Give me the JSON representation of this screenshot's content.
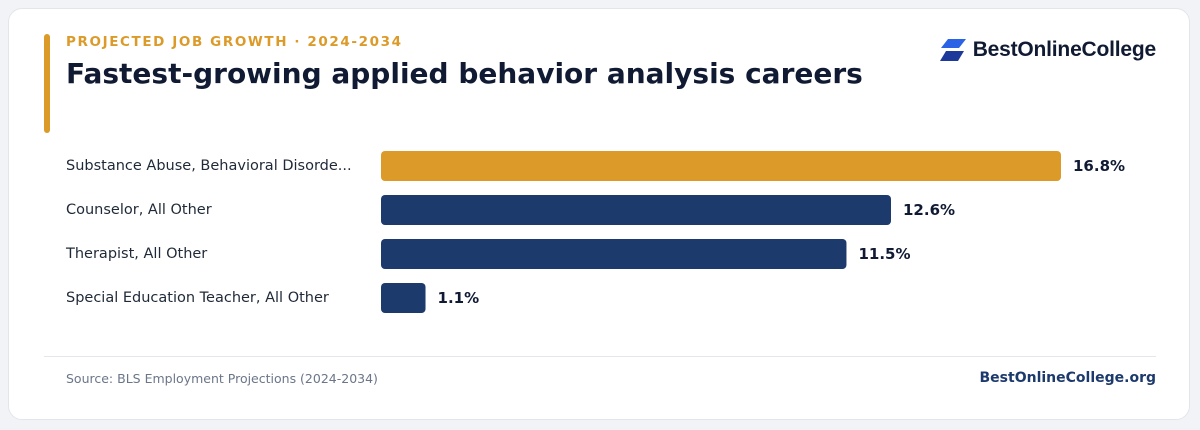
{
  "header": {
    "eyebrow": "PROJECTED JOB GROWTH · 2024-2034",
    "title": "Fastest-growing applied behavior analysis careers"
  },
  "brand": {
    "name": "BestOnlineCollege",
    "icon": "stacked-chevrons-logo-icon"
  },
  "footer": {
    "source": "Source: BLS Employment Projections (2024-2034)",
    "site": "BestOnlineCollege.org"
  },
  "colors": {
    "highlight": "#dc9a29",
    "bar": "#1d3a6d",
    "brand_blue": "#2a63e6"
  },
  "chart_data": {
    "type": "bar",
    "orientation": "horizontal",
    "title": "Fastest-growing applied behavior analysis careers",
    "categories": [
      "Substance Abuse, Behavioral Disorde...",
      "Counselor, All Other",
      "Therapist, All Other",
      "Special Education Teacher, All Other"
    ],
    "values": [
      16.8,
      12.6,
      11.5,
      1.1
    ],
    "value_labels": [
      "16.8%",
      "12.6%",
      "11.5%",
      "1.1%"
    ],
    "unit": "%",
    "highlighted_index": 0,
    "xlim": [
      0,
      16.8
    ],
    "grid": false,
    "legend": "none"
  }
}
